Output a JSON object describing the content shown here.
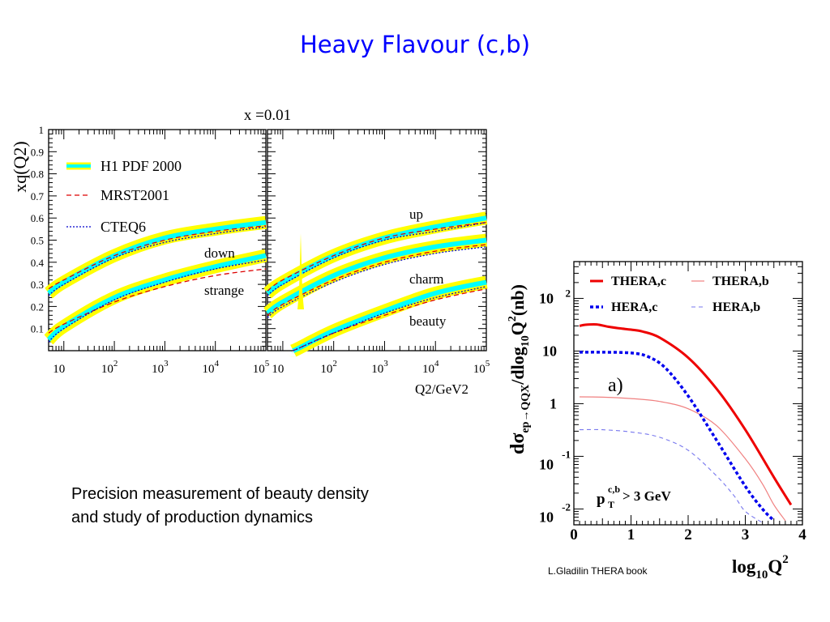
{
  "slide": {
    "title": "Heavy Flavour (c,b)",
    "caption_line1": "Precision measurement of beauty density",
    "caption_line2": "and study of production dynamics",
    "credit": "L.Gladilin THERA book"
  },
  "colors": {
    "title": "#0000ff",
    "band_outer": "#ffff00",
    "band_inner": "#00ffff",
    "mrst": "#dd0000",
    "cteq": "#0000cc",
    "thera": "#ee0000",
    "hera": "#0000ee"
  },
  "chart_data": [
    {
      "type": "line",
      "title": "x =0.01",
      "ylabel": "xq(Q2)",
      "xlabel": "Q2/GeV2",
      "xscale": "log",
      "xlim": [
        5,
        100000
      ],
      "ylim": [
        0,
        1
      ],
      "yticks": [
        "0.1",
        "0.2",
        "0.3",
        "0.4",
        "0.5",
        "0.6",
        "0.7",
        "0.8",
        "0.9",
        "1"
      ],
      "xticks_base": "10",
      "xticks_exp": [
        "",
        "2",
        "3",
        "4",
        "5"
      ],
      "legend": [
        "H1 PDF 2000",
        "MRST2001",
        "CTEQ6"
      ],
      "legend_position": "top-left",
      "panels": [
        {
          "name": "left",
          "curves": [
            {
              "label": "down",
              "x": [
                5,
                10,
                100,
                1000,
                10000,
                100000
              ],
              "h1": [
                0.26,
                0.31,
                0.43,
                0.51,
                0.55,
                0.58
              ],
              "mrst": [
                0.28,
                0.32,
                0.43,
                0.5,
                0.54,
                0.565
              ],
              "cteq": [
                0.25,
                0.3,
                0.42,
                0.49,
                0.53,
                0.56
              ]
            },
            {
              "label": "strange",
              "x": [
                5,
                10,
                100,
                1000,
                10000,
                100000
              ],
              "h1": [
                0.05,
                0.11,
                0.24,
                0.32,
                0.38,
                0.43
              ],
              "mrst": [
                0.08,
                0.12,
                0.22,
                0.29,
                0.34,
                0.37
              ],
              "cteq": [
                0.04,
                0.1,
                0.23,
                0.31,
                0.37,
                0.41
              ]
            }
          ]
        },
        {
          "name": "right",
          "curves": [
            {
              "label": "up",
              "x": [
                5,
                10,
                100,
                1000,
                10000,
                100000
              ],
              "h1": [
                0.26,
                0.31,
                0.43,
                0.51,
                0.56,
                0.6
              ],
              "mrst": [
                0.27,
                0.32,
                0.43,
                0.51,
                0.55,
                0.58
              ],
              "cteq": [
                0.25,
                0.3,
                0.42,
                0.5,
                0.54,
                0.58
              ]
            },
            {
              "label": "charm",
              "x": [
                5,
                10,
                100,
                1000,
                10000,
                100000
              ],
              "h1": [
                0.17,
                0.22,
                0.34,
                0.42,
                0.47,
                0.5
              ],
              "mrst": [
                0.16,
                0.21,
                0.32,
                0.4,
                0.45,
                0.48
              ],
              "cteq": [
                0.15,
                0.2,
                0.31,
                0.39,
                0.44,
                0.47
              ]
            },
            {
              "label": "beauty",
              "x": [
                16,
                20,
                100,
                1000,
                10000,
                100000
              ],
              "h1": [
                0.0,
                0.01,
                0.09,
                0.18,
                0.26,
                0.31
              ],
              "mrst": [
                0.0,
                0.01,
                0.08,
                0.16,
                0.23,
                0.28
              ],
              "cteq": [
                0.0,
                0.01,
                0.08,
                0.17,
                0.24,
                0.29
              ]
            }
          ]
        }
      ]
    },
    {
      "type": "line",
      "ylabel_parts": [
        "dσ",
        "ep→QQX",
        "/dlog",
        "10",
        "Q",
        "2",
        "(nb)"
      ],
      "xlabel_parts": [
        "log",
        "10",
        "Q",
        "2"
      ],
      "xlim": [
        0,
        4
      ],
      "yscale": "log",
      "ylim": [
        0.005,
        500
      ],
      "xticks": [
        "0",
        "1",
        "2",
        "3",
        "4"
      ],
      "yticks": [
        {
          "base": "10",
          "exp": "2",
          "value": 100
        },
        {
          "base": "10",
          "exp": "",
          "value": 10
        },
        {
          "base": "1",
          "exp": "",
          "value": 1
        },
        {
          "base": "10",
          "exp": "-1",
          "value": 0.1
        },
        {
          "base": "10",
          "exp": "-2",
          "value": 0.01
        }
      ],
      "panel_label": "a)",
      "annotation": {
        "main": "p",
        "sup": "c,b",
        "sub": "T",
        "rest": " > 3 GeV"
      },
      "legend_position": "top",
      "series": [
        {
          "name": "THERA,c",
          "style": "solid-thick",
          "x": [
            0.1,
            0.2,
            0.4,
            0.6,
            0.8,
            1.0,
            1.2,
            1.5,
            2.0,
            2.5,
            3.0,
            3.5,
            3.8
          ],
          "y": [
            30,
            31.5,
            32,
            29,
            27,
            25.5,
            23.5,
            18,
            7.5,
            1.9,
            0.32,
            0.04,
            0.012
          ]
        },
        {
          "name": "THERA,b",
          "style": "solid-thin",
          "x": [
            0.1,
            0.5,
            1.0,
            1.5,
            2.0,
            2.5,
            3.0,
            3.3,
            3.5,
            3.7
          ],
          "y": [
            1.35,
            1.33,
            1.25,
            1.1,
            0.8,
            0.38,
            0.09,
            0.03,
            0.012,
            0.006
          ]
        },
        {
          "name": "HERA,c",
          "style": "dashed-thick",
          "x": [
            0.1,
            0.5,
            1.0,
            1.3,
            1.6,
            2.0,
            2.5,
            3.0,
            3.3,
            3.5
          ],
          "y": [
            9.5,
            9.5,
            9.2,
            7.8,
            4.8,
            1.4,
            0.2,
            0.027,
            0.01,
            0.006
          ]
        },
        {
          "name": "HERA,b",
          "style": "dashed-thin",
          "x": [
            0.1,
            0.5,
            1.0,
            1.5,
            2.0,
            2.5,
            2.8,
            3.0,
            3.3
          ],
          "y": [
            0.32,
            0.32,
            0.29,
            0.23,
            0.13,
            0.042,
            0.018,
            0.009,
            0.0055
          ]
        }
      ]
    }
  ]
}
